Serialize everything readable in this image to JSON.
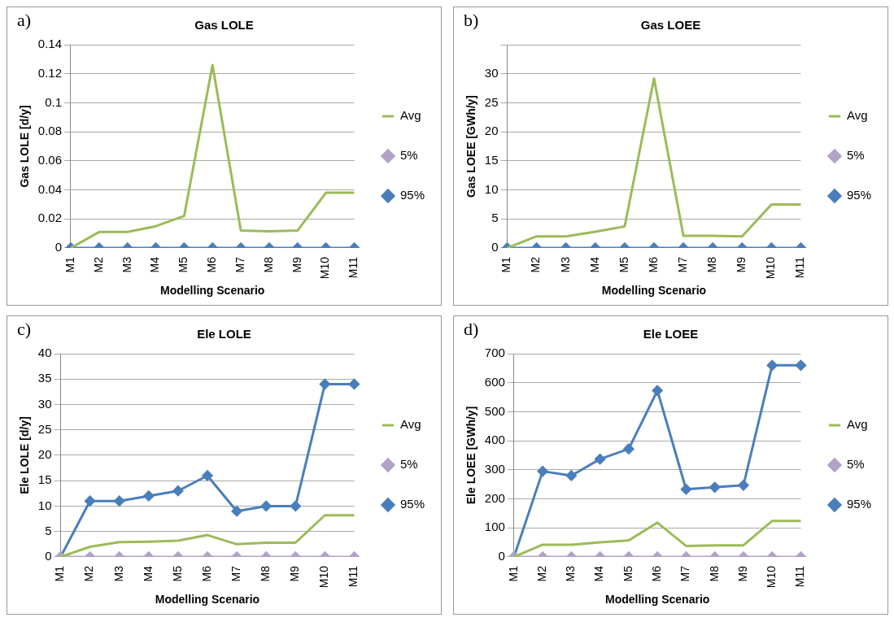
{
  "chart_data": [
    {
      "type": "line",
      "title": "Gas LOLE",
      "annotations": [
        "a)"
      ],
      "xlabel": "Modelling Scenario",
      "ylabel": "Gas LOLE [d/y]",
      "categories": [
        "M1",
        "M2",
        "M3",
        "M4",
        "M5",
        "M6",
        "M7",
        "M8",
        "M9",
        "M10",
        "M11"
      ],
      "ylim": [
        0,
        0.14
      ],
      "yticks": [
        0,
        0.02,
        0.04,
        0.06,
        0.08,
        0.1,
        0.12,
        0.14
      ],
      "grid": "y",
      "legend": "right",
      "series": [
        {
          "name": "Avg",
          "color": "#9bbb59",
          "marker": "none",
          "values": [
            0,
            0.011,
            0.011,
            0.015,
            0.022,
            0.126,
            0.012,
            0.0115,
            0.012,
            0.038,
            0.038
          ]
        },
        {
          "name": "5%",
          "color": "#b3a2c7",
          "marker": "diamond",
          "values": [
            null,
            null,
            null,
            null,
            null,
            null,
            null,
            null,
            null,
            null,
            null
          ]
        },
        {
          "name": "95%",
          "color": "#4a7ebb",
          "marker": "diamond",
          "values": [
            0,
            0,
            0,
            0,
            0,
            0,
            0,
            0,
            0,
            0,
            0
          ]
        }
      ]
    },
    {
      "type": "line",
      "title": "Gas LOEE",
      "annotations": [
        "b)"
      ],
      "xlabel": "Modelling Scenario",
      "ylabel": "Gas LOEE [GWh/y]",
      "categories": [
        "M1",
        "M2",
        "M3",
        "M4",
        "M5",
        "M6",
        "M7",
        "M8",
        "M9",
        "M10",
        "M11"
      ],
      "ylim": [
        0,
        35
      ],
      "yticks": [
        0,
        5,
        10,
        15,
        20,
        25,
        30,
        {
          "value": 35,
          "label": null
        }
      ],
      "grid": "y",
      "legend": "right",
      "series": [
        {
          "name": "Avg",
          "color": "#9bbb59",
          "marker": "none",
          "values": [
            0,
            2,
            2,
            2.8,
            3.7,
            29.2,
            2.1,
            2.1,
            2,
            7.5,
            7.5
          ]
        },
        {
          "name": "5%",
          "color": "#b3a2c7",
          "marker": "diamond",
          "values": [
            null,
            null,
            null,
            null,
            null,
            null,
            null,
            null,
            null,
            null,
            null
          ]
        },
        {
          "name": "95%",
          "color": "#4a7ebb",
          "marker": "diamond",
          "values": [
            0,
            0,
            0,
            0,
            0,
            0,
            0,
            0,
            0,
            0,
            0
          ]
        }
      ]
    },
    {
      "type": "line",
      "title": "Ele LOLE",
      "annotations": [
        "c)"
      ],
      "xlabel": "Modelling Scenario",
      "ylabel": "Ele LOLE [d/y]",
      "categories": [
        "M1",
        "M2",
        "M3",
        "M4",
        "M5",
        "M6",
        "M7",
        "M8",
        "M9",
        "M10",
        "M11"
      ],
      "ylim": [
        0,
        40
      ],
      "yticks": [
        0,
        5,
        10,
        15,
        20,
        25,
        30,
        35,
        40
      ],
      "grid": "y",
      "legend": "right",
      "series": [
        {
          "name": "Avg",
          "color": "#9bbb59",
          "marker": "none",
          "values": [
            0,
            2,
            2.9,
            3,
            3.2,
            4.3,
            2.5,
            2.8,
            2.8,
            8.2,
            8.2
          ]
        },
        {
          "name": "5%",
          "color": "#b3a2c7",
          "marker": "diamond",
          "values": [
            0,
            0,
            0,
            0,
            0,
            0,
            0,
            0,
            0,
            0,
            0
          ]
        },
        {
          "name": "95%",
          "color": "#4a7ebb",
          "marker": "diamond",
          "values": [
            0,
            11,
            11,
            12,
            13,
            16,
            9,
            10,
            10,
            34,
            34
          ]
        }
      ]
    },
    {
      "type": "line",
      "title": "Ele LOEE",
      "annotations": [
        "d)"
      ],
      "xlabel": "Modelling Scenario",
      "ylabel": "Ele LOEE [GWh/y]",
      "categories": [
        "M1",
        "M2",
        "M3",
        "M4",
        "M5",
        "M6",
        "M7",
        "M8",
        "M9",
        "M10",
        "M11"
      ],
      "ylim": [
        0,
        700
      ],
      "yticks": [
        0,
        100,
        200,
        300,
        400,
        500,
        600,
        700
      ],
      "grid": "y",
      "legend": "right",
      "series": [
        {
          "name": "Avg",
          "color": "#9bbb59",
          "marker": "none",
          "values": [
            0,
            42,
            42,
            50,
            57,
            118,
            38,
            40,
            40,
            124,
            124
          ]
        },
        {
          "name": "5%",
          "color": "#b3a2c7",
          "marker": "diamond",
          "values": [
            0,
            0,
            0,
            0,
            0,
            0,
            0,
            0,
            0,
            0,
            0
          ]
        },
        {
          "name": "95%",
          "color": "#4a7ebb",
          "marker": "diamond",
          "values": [
            0,
            295,
            280,
            337,
            372,
            573,
            233,
            240,
            247,
            660,
            660
          ]
        }
      ]
    }
  ]
}
